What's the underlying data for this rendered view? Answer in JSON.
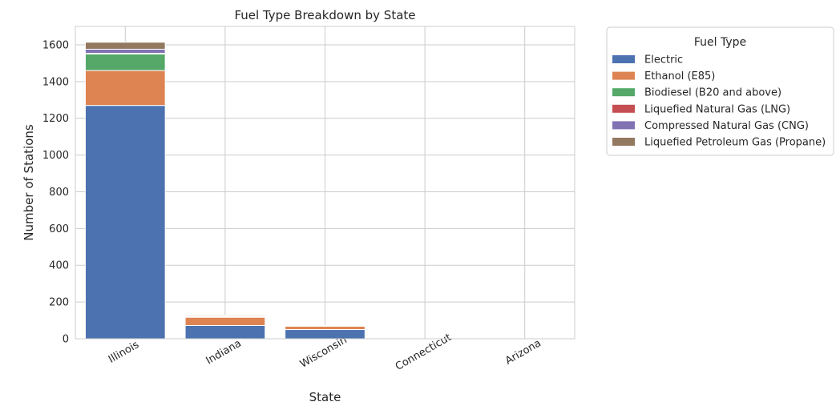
{
  "chart_data": {
    "type": "bar",
    "stacked": true,
    "title": "Fuel Type Breakdown by State",
    "xlabel": "State",
    "ylabel": "Number of Stations",
    "ylim": [
      0,
      1700
    ],
    "yticks": [
      0,
      200,
      400,
      600,
      800,
      1000,
      1200,
      1400,
      1600
    ],
    "grid": true,
    "categories": [
      "Illinois",
      "Indiana",
      "Wisconsin",
      "Connecticut",
      "Arizona"
    ],
    "series": [
      {
        "name": "Electric",
        "color": "#4c72b0",
        "values": [
          1270,
          72,
          50,
          0,
          0
        ]
      },
      {
        "name": "Ethanol (E85)",
        "color": "#dd8452",
        "values": [
          190,
          45,
          18,
          0,
          0
        ]
      },
      {
        "name": "Biodiesel (B20 and above)",
        "color": "#55a868",
        "values": [
          90,
          3,
          0,
          0,
          0
        ]
      },
      {
        "name": "Liquefied Natural Gas (LNG)",
        "color": "#c44e52",
        "values": [
          4,
          0,
          0,
          0,
          0
        ]
      },
      {
        "name": "Compressed Natural Gas (CNG)",
        "color": "#8172b3",
        "values": [
          22,
          3,
          2,
          0,
          0
        ]
      },
      {
        "name": "Liquefied Petroleum Gas (Propane)",
        "color": "#937860",
        "values": [
          38,
          5,
          3,
          0,
          0
        ]
      }
    ],
    "legend": {
      "title": "Fuel Type",
      "placement": "outside-top-right"
    }
  }
}
